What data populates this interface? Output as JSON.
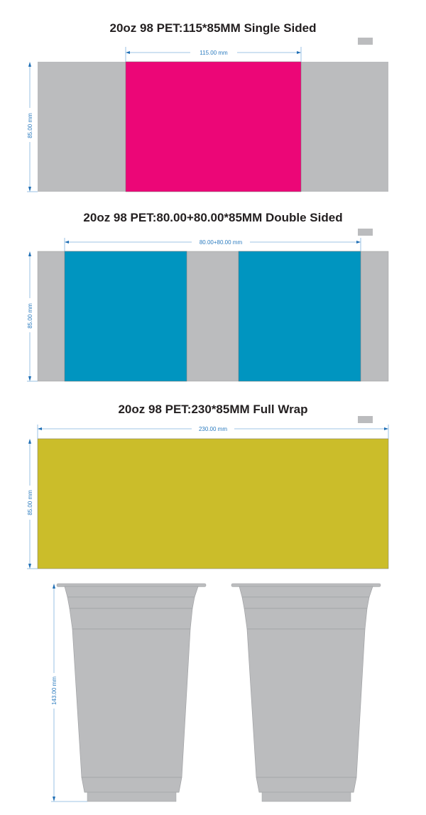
{
  "colors": {
    "sleeve_gray": "#bbbcbe",
    "single_sided": "#ec0677",
    "double_sided": "#0095c0",
    "full_wrap": "#cbbd2a",
    "dimension": "#2b7bbf"
  },
  "sections": [
    {
      "title": "20oz 98 PET:115*85MM Single Sided",
      "width_label": "115.00 mm",
      "height_label": "85.00 mm"
    },
    {
      "title": "20oz 98 PET:80.00+80.00*85MM Double Sided",
      "width_label": "80.00+80.00 mm",
      "height_label": "85.00 mm"
    },
    {
      "title": "20oz 98 PET:230*85MM Full Wrap",
      "width_label": "230.00 mm",
      "height_label": "85.00 mm"
    }
  ],
  "cups": {
    "height_label": "143.00 mm"
  }
}
